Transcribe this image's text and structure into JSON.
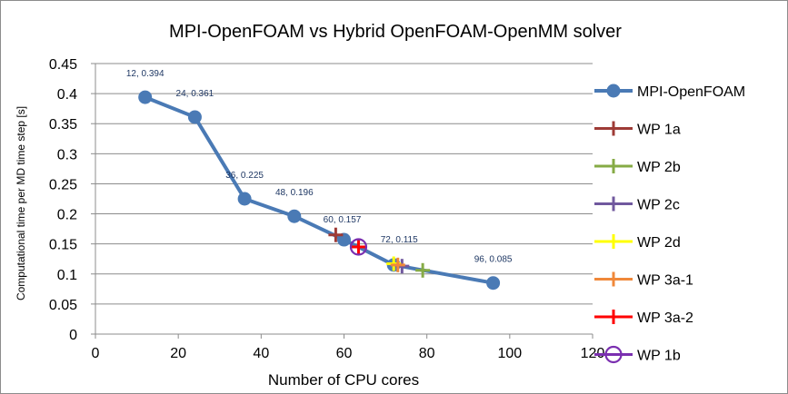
{
  "chart_data": {
    "type": "scatter",
    "title": "MPI-OpenFOAM vs Hybrid OpenFOAM-OpenMM solver",
    "xlabel": "Number of CPU cores",
    "ylabel": "Computational time per MD time step [s]",
    "xlim": [
      0,
      120
    ],
    "ylim": [
      0,
      0.45
    ],
    "x_ticks": [
      0,
      20,
      40,
      60,
      80,
      100,
      120
    ],
    "y_ticks": [
      0,
      0.05,
      0.1,
      0.15,
      0.2,
      0.25,
      0.3,
      0.35,
      0.4,
      0.45
    ],
    "grid": "horizontal",
    "legend_position": "right",
    "series": [
      {
        "name": "MPI-OpenFOAM",
        "marker": "circle",
        "line": true,
        "color": "#4a7ab5",
        "x": [
          12,
          24,
          36,
          48,
          60,
          72,
          96
        ],
        "y": [
          0.394,
          0.361,
          0.225,
          0.196,
          0.157,
          0.115,
          0.085
        ],
        "labels": [
          "12, 0.394",
          "24, 0.361",
          "36, 0.225",
          "48, 0.196",
          "60, 0.157",
          "72, 0.115",
          "96, 0.085"
        ]
      },
      {
        "name": "WP 1a",
        "marker": "plus",
        "color": "#9e3b36",
        "x": [
          58
        ],
        "y": [
          0.165
        ]
      },
      {
        "name": "WP 2b",
        "marker": "plus",
        "color": "#86ab45",
        "x": [
          79
        ],
        "y": [
          0.106
        ]
      },
      {
        "name": "WP 2c",
        "marker": "plus",
        "color": "#70589e",
        "x": [
          74
        ],
        "y": [
          0.113
        ]
      },
      {
        "name": "WP 2d",
        "marker": "plus",
        "color": "#ffff00",
        "x": [
          72
        ],
        "y": [
          0.117
        ]
      },
      {
        "name": "WP 3a-1",
        "marker": "plus",
        "color": "#f0883a",
        "x": [
          73
        ],
        "y": [
          0.115
        ]
      },
      {
        "name": "WP 3a-2",
        "marker": "plus",
        "color": "#ff0000",
        "x": [
          63.5
        ],
        "y": [
          0.145
        ]
      },
      {
        "name": "WP 1b",
        "marker": "open-circle",
        "color": "#7a2fb0",
        "x": [
          63.5
        ],
        "y": [
          0.145
        ]
      }
    ]
  }
}
